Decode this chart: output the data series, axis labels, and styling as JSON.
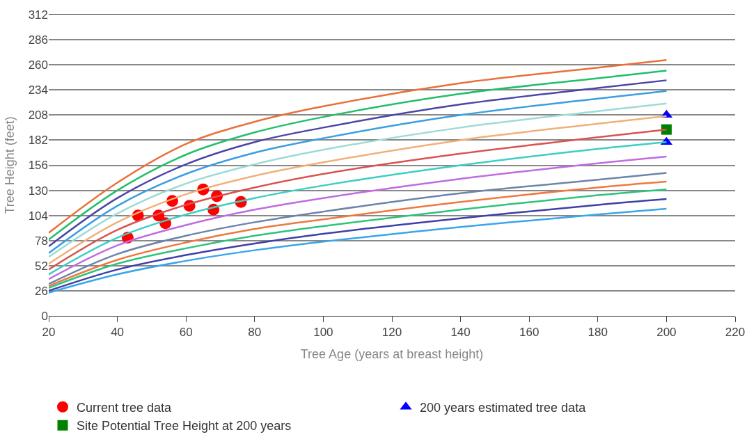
{
  "chart_data": {
    "type": "line",
    "xlabel": "Tree Age (years at breast height)",
    "ylabel": "Tree Height (feet)",
    "xlim": [
      20,
      220
    ],
    "xticks": [
      20,
      40,
      60,
      80,
      100,
      120,
      140,
      160,
      180,
      200,
      220
    ],
    "ylim": [
      0,
      312
    ],
    "yticks": [
      0,
      26,
      52,
      78,
      104,
      130,
      156,
      182,
      208,
      234,
      260,
      286,
      312
    ],
    "grid": "y",
    "legend": "bottom",
    "line_style": "solid",
    "series": [
      {
        "color": "#e8703a",
        "x": [
          20,
          40,
          60,
          80,
          100,
          140,
          180,
          200
        ],
        "values": [
          86,
          138,
          178,
          201,
          217,
          241,
          257,
          265
        ]
      },
      {
        "color": "#1fbf6b",
        "x": [
          20,
          40,
          60,
          80,
          100,
          140,
          180,
          200
        ],
        "values": [
          79,
          130,
          167,
          190,
          206,
          230,
          246,
          254
        ]
      },
      {
        "color": "#4b44a8",
        "x": [
          20,
          40,
          60,
          80,
          100,
          140,
          180,
          200
        ],
        "values": [
          72,
          122,
          157,
          180,
          195,
          219,
          236,
          244
        ]
      },
      {
        "color": "#3a9ee0",
        "x": [
          20,
          40,
          60,
          80,
          100,
          140,
          180,
          200
        ],
        "values": [
          65,
          114,
          147,
          169,
          184,
          208,
          225,
          233
        ]
      },
      {
        "color": "#9ddbd6",
        "x": [
          20,
          40,
          60,
          80,
          100,
          140,
          180,
          200
        ],
        "values": [
          61,
          106,
          137,
          157,
          172,
          195,
          212,
          220
        ]
      },
      {
        "color": "#f0b07a",
        "x": [
          20,
          40,
          60,
          80,
          100,
          140,
          180,
          200
        ],
        "values": [
          54,
          97,
          126,
          145,
          159,
          182,
          199,
          207
        ]
      },
      {
        "color": "#d9534f",
        "x": [
          20,
          40,
          60,
          80,
          100,
          140,
          180,
          200
        ],
        "values": [
          48,
          89,
          115,
          133,
          147,
          168,
          185,
          193
        ]
      },
      {
        "color": "#3ccfc0",
        "x": [
          20,
          40,
          60,
          80,
          100,
          140,
          180,
          200
        ],
        "values": [
          43,
          81,
          105,
          122,
          135,
          156,
          173,
          180
        ]
      },
      {
        "color": "#c06ce0",
        "x": [
          20,
          40,
          60,
          80,
          100,
          140,
          180,
          200
        ],
        "values": [
          38,
          73,
          94,
          110,
          122,
          142,
          158,
          165
        ]
      },
      {
        "color": "#6b84a8",
        "x": [
          20,
          40,
          60,
          80,
          100,
          140,
          180,
          200
        ],
        "values": [
          33,
          64,
          83,
          97,
          108,
          127,
          141,
          148
        ]
      },
      {
        "color": "#ef7840",
        "x": [
          20,
          40,
          60,
          80,
          100,
          140,
          180,
          200
        ],
        "values": [
          31,
          58,
          76,
          90,
          100,
          118,
          133,
          139
        ]
      },
      {
        "color": "#2ec27e",
        "x": [
          20,
          40,
          60,
          80,
          100,
          140,
          180,
          200
        ],
        "values": [
          29,
          54,
          70,
          83,
          93,
          110,
          125,
          131
        ]
      },
      {
        "color": "#3f3fa8",
        "x": [
          20,
          40,
          60,
          80,
          100,
          140,
          180,
          200
        ],
        "values": [
          26,
          48,
          63,
          75,
          85,
          101,
          115,
          121
        ]
      },
      {
        "color": "#3aa5e8",
        "x": [
          20,
          40,
          60,
          80,
          100,
          140,
          180,
          200
        ],
        "values": [
          24,
          43,
          57,
          68,
          77,
          92,
          105,
          111
        ]
      },
      {
        "type": "scatter",
        "name": "Current tree data",
        "color": "#ff0000",
        "marker": "circle",
        "x": [
          43,
          46,
          52,
          54,
          56,
          61,
          65,
          69,
          68,
          76
        ],
        "values": [
          81,
          104,
          104,
          96,
          119,
          114,
          131,
          124,
          110,
          118
        ]
      },
      {
        "type": "scatter",
        "name": "200 years estimated tree data",
        "color": "#0000ff",
        "marker": "triangle",
        "x": [
          200,
          200
        ],
        "values": [
          208,
          180
        ]
      },
      {
        "type": "scatter",
        "name": "Site Potential Tree Height at 200 years",
        "color": "#008000",
        "marker": "square",
        "x": [
          200
        ],
        "values": [
          193
        ]
      }
    ]
  }
}
